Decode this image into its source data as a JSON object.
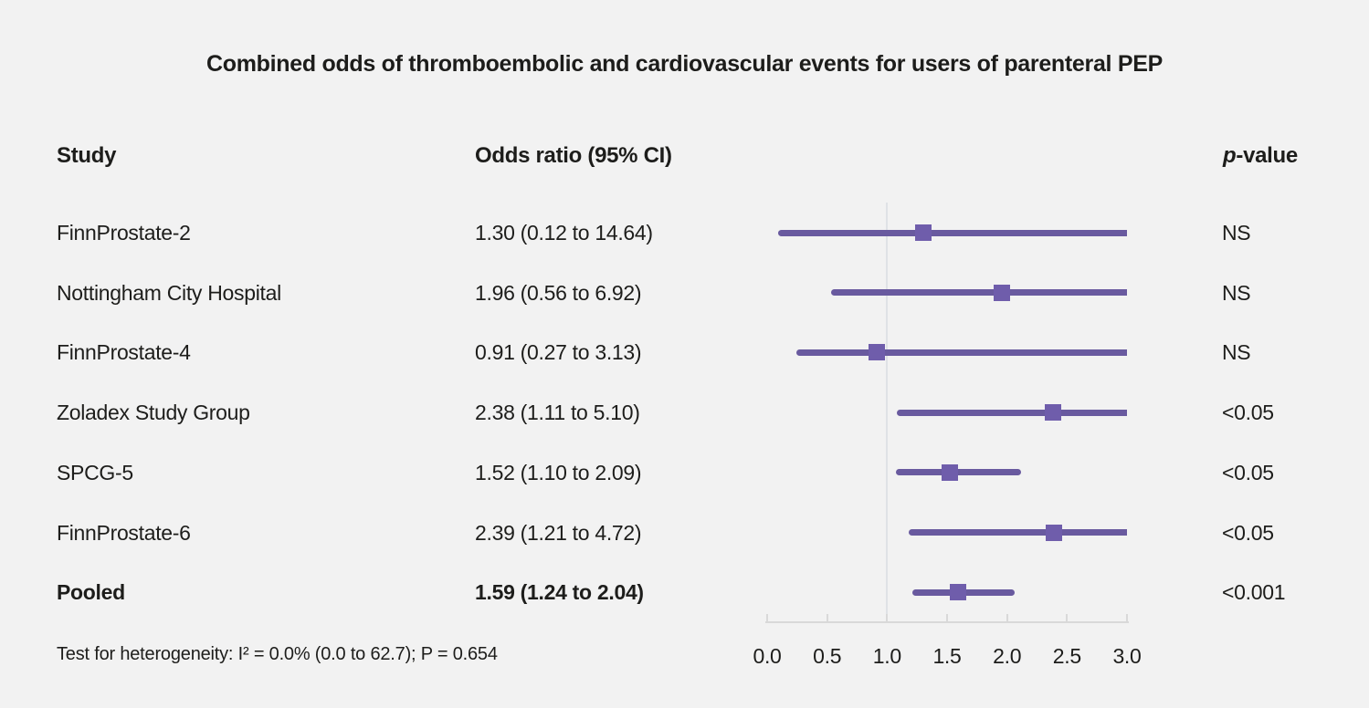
{
  "title": "Combined odds of thromboembolic and cardiovascular events for users of parenteral PEP",
  "columns": {
    "study": "Study",
    "odds_ratio": "Odds ratio (95% CI)",
    "p_italic": "p",
    "p_rest": "-value"
  },
  "footer": "Test for heterogeneity: I² = 0.0% (0.0 to 62.7); P = 0.654",
  "colors": {
    "background": "#f2f2f2",
    "text": "#1d1d1b",
    "ci_line": "#695a9f",
    "marker": "#6f5dab",
    "reference_line": "#dfe2e6",
    "axis": "#d9d9d9"
  },
  "chart_data": {
    "type": "forest",
    "title": "Combined odds of thromboembolic and cardiovascular events for users of parenteral PEP",
    "xlim": [
      0.0,
      3.0
    ],
    "x_ticks": [
      "0.0",
      "0.5",
      "1.0",
      "1.5",
      "2.0",
      "2.5",
      "3.0"
    ],
    "reference_line_x": 1.0,
    "grid": false,
    "rows": [
      {
        "study": "FinnProstate-2",
        "or": 1.3,
        "ci_low": 0.12,
        "ci_high": 14.64,
        "or_label": "1.30 (0.12 to 14.64)",
        "p": "NS",
        "bold": false
      },
      {
        "study": "Nottingham City Hospital",
        "or": 1.96,
        "ci_low": 0.56,
        "ci_high": 6.92,
        "or_label": "1.96 (0.56 to 6.92)",
        "p": "NS",
        "bold": false
      },
      {
        "study": "FinnProstate-4",
        "or": 0.91,
        "ci_low": 0.27,
        "ci_high": 3.13,
        "or_label": "0.91 (0.27 to 3.13)",
        "p": "NS",
        "bold": false
      },
      {
        "study": "Zoladex Study Group",
        "or": 2.38,
        "ci_low": 1.11,
        "ci_high": 5.1,
        "or_label": "2.38 (1.11 to 5.10)",
        "p": "<0.05",
        "bold": false
      },
      {
        "study": "SPCG-5",
        "or": 1.52,
        "ci_low": 1.1,
        "ci_high": 2.09,
        "or_label": "1.52 (1.10 to 2.09)",
        "p": "<0.05",
        "bold": false
      },
      {
        "study": "FinnProstate-6",
        "or": 2.39,
        "ci_low": 1.21,
        "ci_high": 4.72,
        "or_label": "2.39 (1.21 to 4.72)",
        "p": "<0.05",
        "bold": false
      },
      {
        "study": "Pooled",
        "or": 1.59,
        "ci_low": 1.24,
        "ci_high": 2.04,
        "or_label": "1.59 (1.24 to 2.04)",
        "p": "<0.001",
        "bold": true
      }
    ]
  }
}
